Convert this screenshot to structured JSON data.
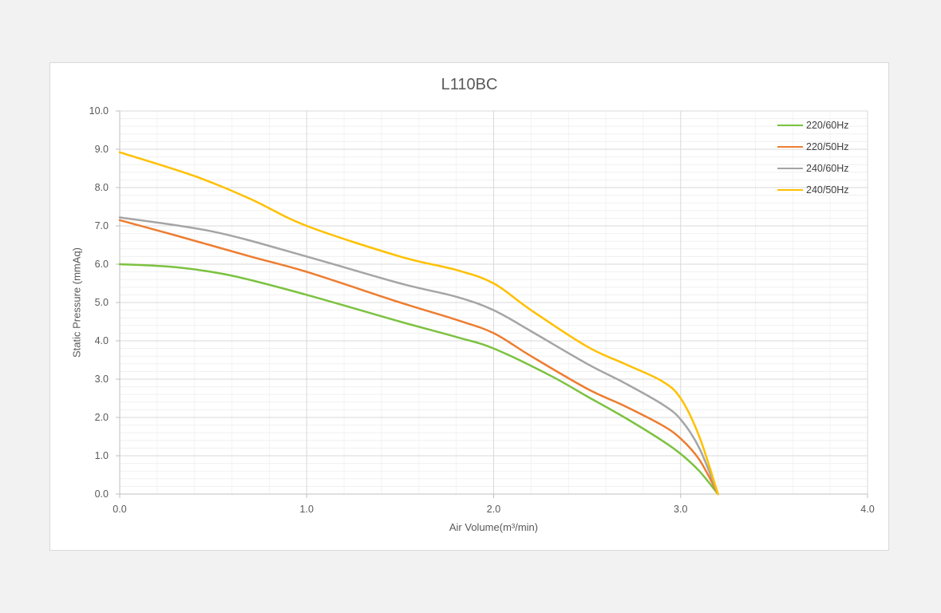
{
  "chart_data": {
    "type": "line",
    "title": "L110BC",
    "xlabel": "Air Volume(m³/min)",
    "ylabel": "Static Pressure (mmAq)",
    "xlim": [
      0,
      4
    ],
    "ylim": [
      0,
      10
    ],
    "x_ticks": [
      "0.0",
      "1.0",
      "2.0",
      "3.0",
      "4.0"
    ],
    "y_ticks": [
      "0.0",
      "1.0",
      "2.0",
      "3.0",
      "4.0",
      "5.0",
      "6.0",
      "7.0",
      "8.0",
      "9.0",
      "10.0"
    ],
    "grid": true,
    "legend_position": "top-right",
    "series": [
      {
        "name": "220/60Hz",
        "color": "#7cc241",
        "points": [
          [
            0,
            6.0
          ],
          [
            0.3,
            5.92
          ],
          [
            0.6,
            5.7
          ],
          [
            1.0,
            5.2
          ],
          [
            1.5,
            4.5
          ],
          [
            1.8,
            4.1
          ],
          [
            2.0,
            3.8
          ],
          [
            2.3,
            3.1
          ],
          [
            2.5,
            2.55
          ],
          [
            2.7,
            2.0
          ],
          [
            2.9,
            1.4
          ],
          [
            3.0,
            1.05
          ],
          [
            3.1,
            0.6
          ],
          [
            3.2,
            0.0
          ]
        ]
      },
      {
        "name": "220/50Hz",
        "color": "#ed7d31",
        "points": [
          [
            0,
            7.15
          ],
          [
            0.3,
            6.75
          ],
          [
            0.7,
            6.2
          ],
          [
            1.0,
            5.8
          ],
          [
            1.5,
            5.0
          ],
          [
            1.8,
            4.55
          ],
          [
            2.0,
            4.2
          ],
          [
            2.2,
            3.6
          ],
          [
            2.5,
            2.75
          ],
          [
            2.7,
            2.3
          ],
          [
            2.9,
            1.8
          ],
          [
            3.0,
            1.45
          ],
          [
            3.1,
            0.9
          ],
          [
            3.2,
            0.0
          ]
        ]
      },
      {
        "name": "240/60Hz",
        "color": "#a5a5a5",
        "points": [
          [
            0,
            7.22
          ],
          [
            0.5,
            6.85
          ],
          [
            1.0,
            6.2
          ],
          [
            1.5,
            5.5
          ],
          [
            1.8,
            5.15
          ],
          [
            2.0,
            4.8
          ],
          [
            2.2,
            4.25
          ],
          [
            2.5,
            3.4
          ],
          [
            2.7,
            2.9
          ],
          [
            2.9,
            2.35
          ],
          [
            3.0,
            1.95
          ],
          [
            3.1,
            1.2
          ],
          [
            3.2,
            0.0
          ]
        ]
      },
      {
        "name": "240/50Hz",
        "color": "#ffc000",
        "points": [
          [
            0,
            8.92
          ],
          [
            0.4,
            8.3
          ],
          [
            0.7,
            7.7
          ],
          [
            1.0,
            7.0
          ],
          [
            1.5,
            6.2
          ],
          [
            1.8,
            5.85
          ],
          [
            2.0,
            5.5
          ],
          [
            2.2,
            4.8
          ],
          [
            2.5,
            3.85
          ],
          [
            2.7,
            3.4
          ],
          [
            2.9,
            2.95
          ],
          [
            3.0,
            2.5
          ],
          [
            3.1,
            1.5
          ],
          [
            3.2,
            0.0
          ]
        ]
      }
    ]
  }
}
